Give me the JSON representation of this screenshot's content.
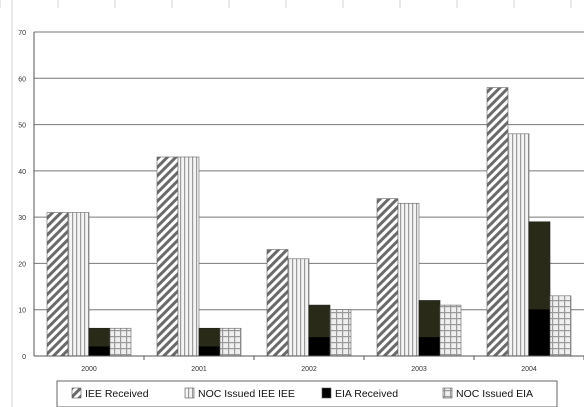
{
  "chart_data": {
    "type": "bar",
    "categories": [
      "2000",
      "2001",
      "2002",
      "2003",
      "2004"
    ],
    "ylim": [
      0,
      70
    ],
    "yticks": [
      0,
      10,
      20,
      30,
      40,
      50,
      60,
      70
    ],
    "grid": true,
    "legend_position": "bottom",
    "series": [
      {
        "name": "IEE Received",
        "values": [
          31,
          43,
          23,
          34,
          58
        ],
        "pattern": "diagonal-hatch"
      },
      {
        "name": "NOC Issued IEE IEE",
        "values": [
          31,
          43,
          21,
          33,
          48
        ],
        "pattern": "vertical-lines"
      },
      {
        "name": "EIA Received",
        "values": [
          6,
          6,
          11,
          12,
          29
        ],
        "lower_values": [
          2,
          2,
          4,
          4,
          10
        ],
        "pattern": "solid-dark"
      },
      {
        "name": "NOC Issued EIA",
        "values": [
          6,
          6,
          10,
          11,
          13
        ],
        "pattern": "checker"
      }
    ],
    "colors": {
      "grid": "#777777",
      "axis": "#555555",
      "dark_upper": "#2a2a18",
      "dark_lower": "#000000",
      "background": "#ffffff",
      "spreadsheet_grid": "#d4d4d4"
    }
  }
}
